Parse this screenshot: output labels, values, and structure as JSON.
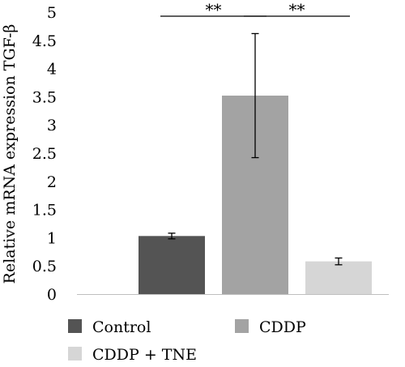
{
  "chart_data": {
    "type": "bar",
    "title": "",
    "xlabel": "",
    "ylabel": "Relative mRNA expression TGF-β",
    "ylim": [
      0,
      5
    ],
    "yticks": [
      "0",
      "0.5",
      "1",
      "1.5",
      "2",
      "2.5",
      "3",
      "3.5",
      "4",
      "4.5",
      "5"
    ],
    "grid": false,
    "legend_position": "bottom",
    "categories": [
      "Control",
      "CDDP",
      "CDDP + TNE"
    ],
    "values": [
      1.03,
      3.52,
      0.58
    ],
    "errors": [
      0.05,
      1.1,
      0.06
    ],
    "colors": [
      "#545454",
      "#a3a3a3",
      "#d6d6d6"
    ],
    "significance": [
      {
        "from": "Control",
        "to": "CDDP",
        "label": "**"
      },
      {
        "from": "CDDP",
        "to": "CDDP + TNE",
        "label": "**"
      }
    ]
  }
}
